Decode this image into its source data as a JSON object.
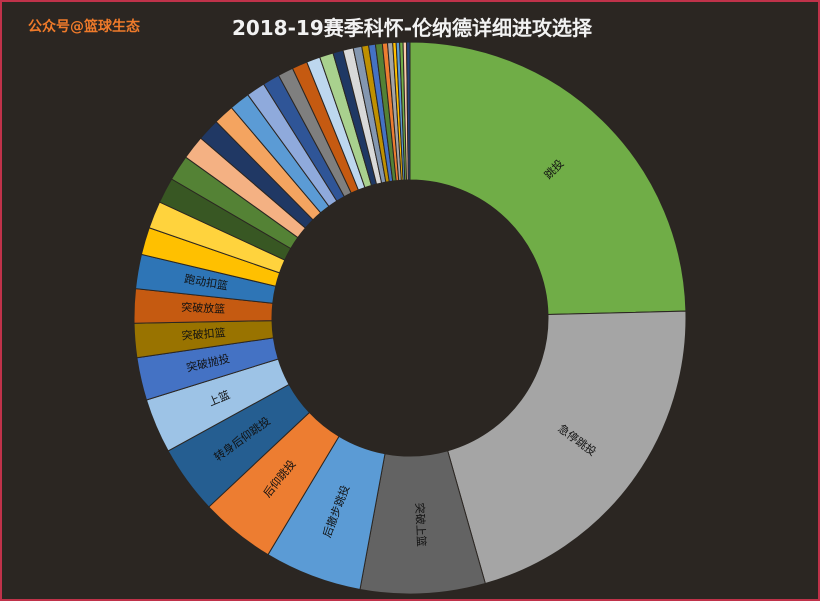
{
  "brand": "公众号@篮球生态",
  "chart_data": {
    "type": "pie",
    "variant": "donut",
    "title": "2018-19赛季科怀-伦纳德详细进攻选择",
    "unit": "percent share",
    "slices": [
      {
        "label": "跳投",
        "value": 24.6,
        "color": "#70ad47"
      },
      {
        "label": "急停跳投",
        "value": 21.0,
        "color": "#a5a5a5"
      },
      {
        "label": "突破上篮",
        "value": 7.3,
        "color": "#636363"
      },
      {
        "label": "后撤步跳投",
        "value": 5.7,
        "color": "#5b9bd5"
      },
      {
        "label": "后仰跳投",
        "value": 4.4,
        "color": "#ed7d31"
      },
      {
        "label": "转身后仰跳投",
        "value": 4.0,
        "color": "#255e91"
      },
      {
        "label": "上篮",
        "value": 3.2,
        "color": "#9dc3e6"
      },
      {
        "label": "突破抛投",
        "value": 2.5,
        "color": "#4472c4"
      },
      {
        "label": "突破扣篮",
        "value": 2.0,
        "color": "#997300"
      },
      {
        "label": "突破放篮",
        "value": 2.0,
        "color": "#c55a11"
      },
      {
        "label": "跑动扣篮",
        "value": 2.0,
        "color": "#2e75b6"
      },
      {
        "label": "",
        "value": 1.6,
        "color": "#ffc000"
      },
      {
        "label": "",
        "value": 1.6,
        "color": "#ffd33d"
      },
      {
        "label": "",
        "value": 1.5,
        "color": "#385723"
      },
      {
        "label": "",
        "value": 1.5,
        "color": "#548235"
      },
      {
        "label": "",
        "value": 1.4,
        "color": "#f4b183"
      },
      {
        "label": "",
        "value": 1.3,
        "color": "#203864"
      },
      {
        "label": "",
        "value": 1.2,
        "color": "#f4a460"
      },
      {
        "label": "",
        "value": 1.2,
        "color": "#5b9bd5"
      },
      {
        "label": "",
        "value": 1.1,
        "color": "#8faadc"
      },
      {
        "label": "",
        "value": 1.0,
        "color": "#2f5597"
      },
      {
        "label": "",
        "value": 0.9,
        "color": "#7f7f7f"
      },
      {
        "label": "",
        "value": 0.9,
        "color": "#c55a11"
      },
      {
        "label": "",
        "value": 0.8,
        "color": "#bdd7ee"
      },
      {
        "label": "",
        "value": 0.8,
        "color": "#a9d18e"
      },
      {
        "label": "",
        "value": 0.6,
        "color": "#1f3864"
      },
      {
        "label": "",
        "value": 0.6,
        "color": "#d9d9d9"
      },
      {
        "label": "",
        "value": 0.5,
        "color": "#8497b0"
      },
      {
        "label": "",
        "value": 0.4,
        "color": "#bf9000"
      },
      {
        "label": "",
        "value": 0.4,
        "color": "#4472c4"
      },
      {
        "label": "",
        "value": 0.4,
        "color": "#548235"
      },
      {
        "label": "",
        "value": 0.3,
        "color": "#ed7d31"
      },
      {
        "label": "",
        "value": 0.3,
        "color": "#a5a5a5"
      },
      {
        "label": "",
        "value": 0.2,
        "color": "#ffc000"
      },
      {
        "label": "",
        "value": 0.2,
        "color": "#5b9bd5"
      },
      {
        "label": "",
        "value": 0.2,
        "color": "#70ad47"
      },
      {
        "label": "",
        "value": 0.2,
        "color": "#f8cbad"
      },
      {
        "label": "",
        "value": 0.2,
        "color": "#264478"
      }
    ]
  }
}
